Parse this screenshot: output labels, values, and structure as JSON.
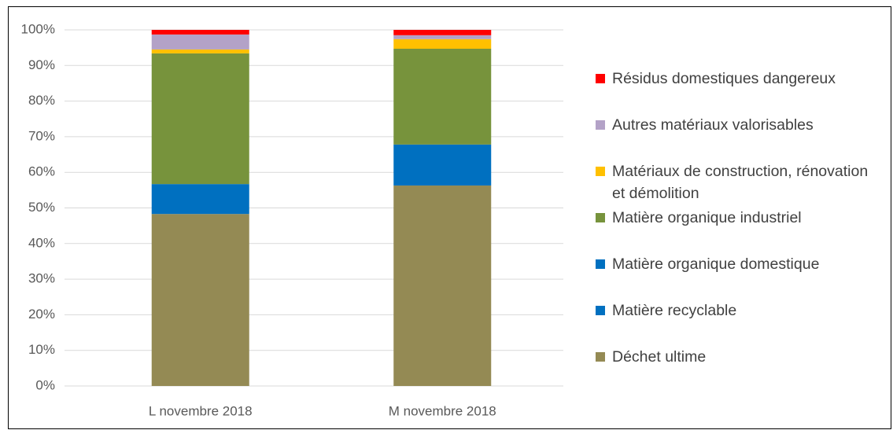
{
  "chart_data": {
    "type": "stacked_bar",
    "categories": [
      "L novembre 2018",
      "M novembre 2018"
    ],
    "series": [
      {
        "name": "Déchet ultime",
        "color": "#948a54",
        "values": [
          48.3,
          56.3
        ]
      },
      {
        "name": "Matière recyclable",
        "color": "#0070c0",
        "values": [
          8.4,
          11.5
        ]
      },
      {
        "name": "Matière organique domestique",
        "color": "#0070c0",
        "values": [
          0,
          0
        ]
      },
      {
        "name": "Matière organique industriel",
        "color": "#77933c",
        "values": [
          36.7,
          26.9
        ]
      },
      {
        "name": "Matériaux de construction, rénovation et démolition",
        "color": "#ffc000",
        "values": [
          1.1,
          2.7
        ]
      },
      {
        "name": "Autres matériaux valorisables",
        "color": "#b3a2c7",
        "values": [
          4.2,
          1.1
        ]
      },
      {
        "name": "Résidus domestiques dangereux",
        "color": "#ff0000",
        "values": [
          1.3,
          1.5
        ]
      }
    ],
    "ylim": [
      0,
      100
    ],
    "yticks": [
      {
        "value": 0,
        "label": "0%"
      },
      {
        "value": 10,
        "label": "10%"
      },
      {
        "value": 20,
        "label": "20%"
      },
      {
        "value": 30,
        "label": "30%"
      },
      {
        "value": 40,
        "label": "40%"
      },
      {
        "value": 50,
        "label": "50%"
      },
      {
        "value": 60,
        "label": "60%"
      },
      {
        "value": 70,
        "label": "70%"
      },
      {
        "value": 80,
        "label": "80%"
      },
      {
        "value": 90,
        "label": "90%"
      },
      {
        "value": 100,
        "label": "100%"
      }
    ],
    "grid": true,
    "legend": "right"
  }
}
